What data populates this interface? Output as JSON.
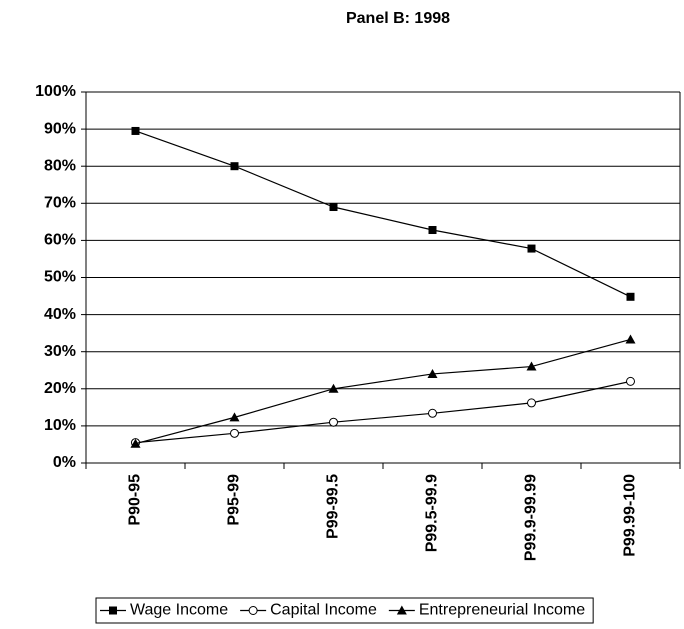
{
  "chart_data": {
    "type": "line",
    "title": "Panel B: 1998",
    "categories": [
      "P90-95",
      "P95-99",
      "P99-99.5",
      "P99.5-99.9",
      "P99.9-99.99",
      "P99.99-100"
    ],
    "series": [
      {
        "name": "Wage Income",
        "color": "#000000",
        "marker": "square",
        "values": [
          89.5,
          80,
          69,
          62.8,
          57.8,
          44.8
        ]
      },
      {
        "name": "Capital Income",
        "color": "#000000",
        "marker": "circle",
        "values": [
          5.5,
          8,
          11,
          13.4,
          16.2,
          22
        ]
      },
      {
        "name": "Entrepreneurial Income",
        "color": "#000000",
        "marker": "triangle",
        "values": [
          5.2,
          12.3,
          20,
          24,
          26,
          33.3
        ]
      }
    ],
    "ylim": [
      0,
      100
    ],
    "yticks": [
      {
        "value": 0,
        "label": "0%"
      },
      {
        "value": 10,
        "label": "10%"
      },
      {
        "value": 20,
        "label": "20%"
      },
      {
        "value": 30,
        "label": "30%"
      },
      {
        "value": 40,
        "label": "40%"
      },
      {
        "value": 50,
        "label": "50%"
      },
      {
        "value": 60,
        "label": "60%"
      },
      {
        "value": 70,
        "label": "70%"
      },
      {
        "value": 80,
        "label": "80%"
      },
      {
        "value": 90,
        "label": "90%"
      },
      {
        "value": 100,
        "label": "100%"
      }
    ],
    "grid": true,
    "legend": "bottom"
  }
}
